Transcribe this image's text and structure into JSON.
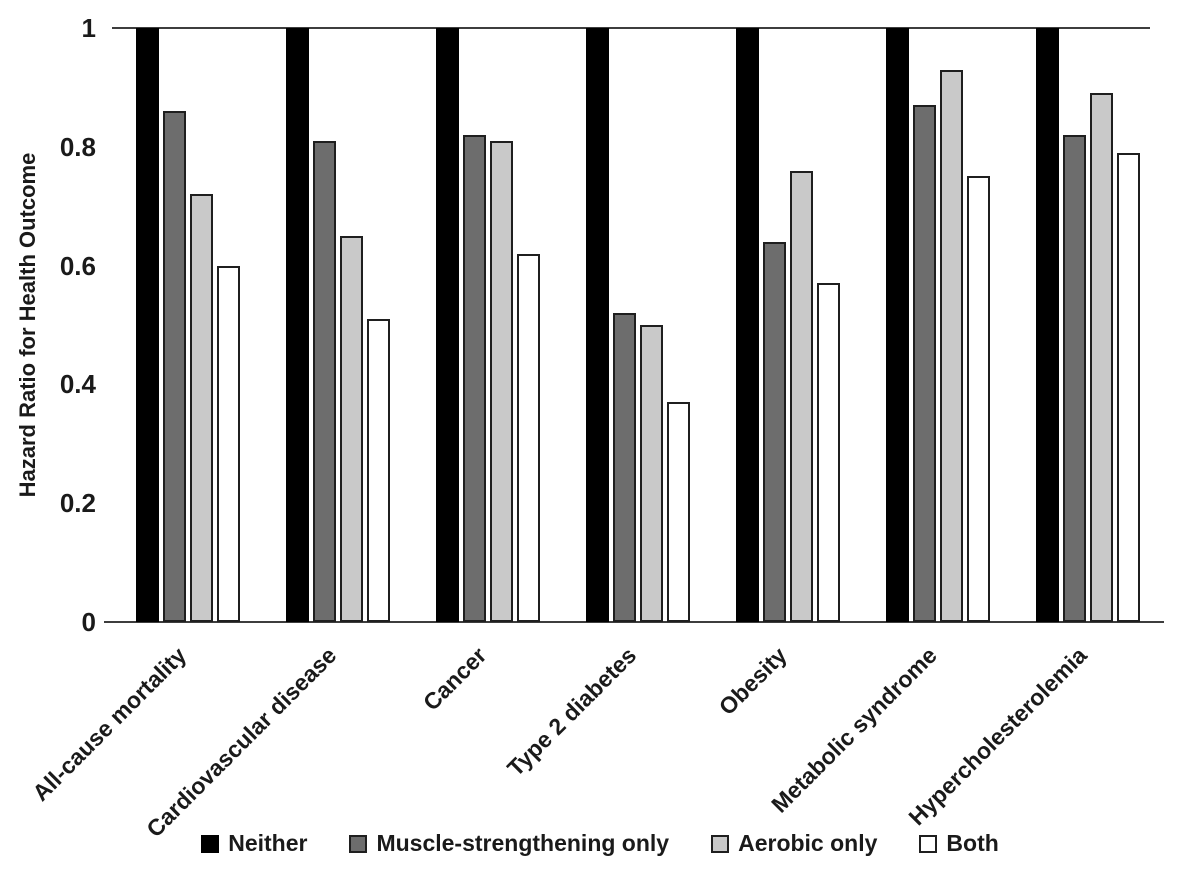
{
  "chart_data": {
    "type": "bar",
    "title": "",
    "xlabel": "",
    "ylabel": "Hazard Ratio for Health Outcome",
    "ylim": [
      0,
      1
    ],
    "grid": false,
    "legend_position": "bottom",
    "yticks": [
      {
        "value": 1,
        "label": "1"
      },
      {
        "value": 0.8,
        "label": "0.8"
      },
      {
        "value": 0.6,
        "label": "0.6"
      },
      {
        "value": 0.4,
        "label": "0.4"
      },
      {
        "value": 0.2,
        "label": "0.2"
      },
      {
        "value": 0,
        "label": "0"
      }
    ],
    "categories": [
      "All-cause mortality",
      "Cardiovascular disease",
      "Cancer",
      "Type 2 diabetes",
      "Obesity",
      "Metabolic syndrome",
      "Hypercholesterolemia"
    ],
    "series": [
      {
        "name": "Neither",
        "fill": "#000000",
        "border": "#000000",
        "values": [
          1,
          1,
          1,
          1,
          1,
          1,
          1
        ]
      },
      {
        "name": "Muscle-strengthening only",
        "fill": "#6d6d6d",
        "border": "#1f1f1f",
        "values": [
          0.86,
          0.81,
          0.82,
          0.52,
          0.64,
          0.87,
          0.82
        ]
      },
      {
        "name": "Aerobic only",
        "fill": "#c9c9c9",
        "border": "#1f1f1f",
        "values": [
          0.72,
          0.65,
          0.81,
          0.5,
          0.76,
          0.93,
          0.89
        ]
      },
      {
        "name": "Both",
        "fill": "#ffffff",
        "border": "#1f1f1f",
        "values": [
          0.6,
          0.51,
          0.62,
          0.37,
          0.57,
          0.75,
          0.79
        ]
      }
    ]
  },
  "colors": {
    "axis_line": "#3d3d3d",
    "text": "#1a1a1a",
    "background": "#ffffff"
  }
}
